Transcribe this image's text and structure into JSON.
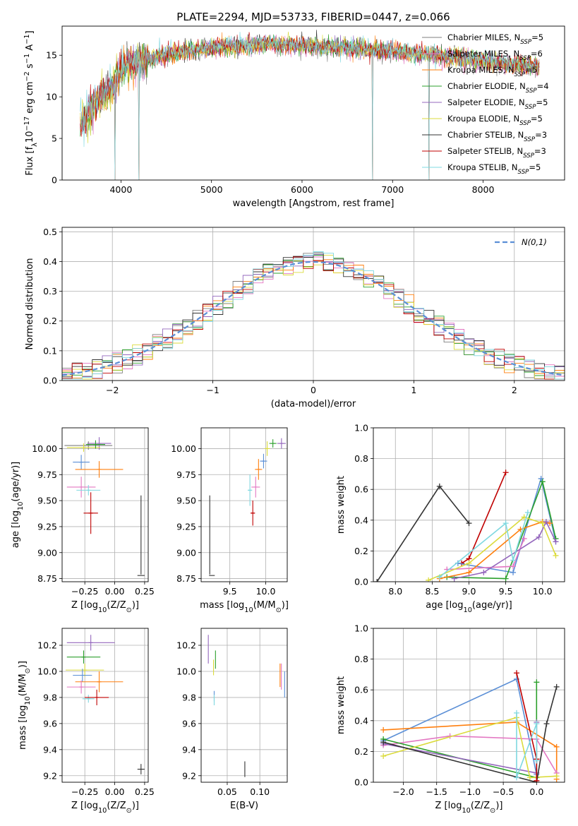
{
  "figure_title": "PLATE=2294, MJD=53733, FIBERID=0447, z=0.066",
  "chart_data": [
    {
      "id": "spectrum",
      "type": "line",
      "xlabel": "wavelength [Angstrom, rest frame]",
      "ylabel": "Flux [f_λ10^-17 erg cm^-2 s^-1 A^-1]",
      "xlim": [
        3350,
        8900
      ],
      "ylim": [
        0,
        18.5
      ],
      "xticks": [
        4000,
        5000,
        6000,
        7000,
        8000
      ],
      "yticks": [
        0,
        5,
        10,
        15
      ],
      "grid": false,
      "legend_position": "right",
      "legend": [
        {
          "label": "Chabrier MILES, N_SSP=5",
          "color": "#7f7f7f"
        },
        {
          "label": "Salpeter MILES, N_SSP=6",
          "color": "#e377c2"
        },
        {
          "label": "Kroupa MILES, N_SSP=5",
          "color": "#ff7f0e"
        },
        {
          "label": "Chabrier ELODIE, N_SSP=4",
          "color": "#2ca02c"
        },
        {
          "label": "Salpeter ELODIE, N_SSP=5",
          "color": "#9467bd"
        },
        {
          "label": "Kroupa ELODIE, N_SSP=5",
          "color": "#dbdb3d"
        },
        {
          "label": "Chabrier STELIB, N_SSP=3",
          "color": "#333333"
        },
        {
          "label": "Salpeter STELIB, N_SSP=3",
          "color": "#c00000"
        },
        {
          "label": "Kroupa STELIB, N_SSP=5",
          "color": "#7fd8e0"
        }
      ],
      "continuum": {
        "x": [
          3550,
          3700,
          3850,
          3950,
          4000,
          4100,
          4200,
          4400,
          4600,
          4800,
          5000,
          5200,
          5400,
          5600,
          5800,
          6000,
          6200,
          6400,
          6600,
          6800,
          7000,
          7200,
          7400,
          7600,
          7800,
          8000,
          8200,
          8400,
          8600
        ],
        "y": [
          6.5,
          9.0,
          10.5,
          12.0,
          13.5,
          13.8,
          14.2,
          14.8,
          15.3,
          15.6,
          15.9,
          16.1,
          16.2,
          16.3,
          16.3,
          16.2,
          16.0,
          15.9,
          15.8,
          15.6,
          15.4,
          15.2,
          15.0,
          14.9,
          14.6,
          14.3,
          14.0,
          13.8,
          13.6
        ]
      },
      "dips": [
        [
          3934,
          0
        ],
        [
          4200,
          0
        ],
        [
          6780,
          0
        ],
        [
          7400,
          0
        ]
      ]
    },
    {
      "id": "residuals",
      "type": "histogram",
      "xlabel": "(data-model)/error",
      "ylabel": "Normed distribution",
      "xlim": [
        -2.5,
        2.5
      ],
      "ylim": [
        0,
        0.515
      ],
      "xticks": [
        -2,
        -1,
        0,
        1,
        2
      ],
      "yticks": [
        0.0,
        0.1,
        0.2,
        0.3,
        0.4,
        0.5
      ],
      "grid": true,
      "legend_position": "top-right",
      "legend": [
        {
          "label": "N(0,1)",
          "color": "#5b8fd6",
          "style": "dashed"
        }
      ],
      "bin_width": 0.1,
      "gauss": {
        "mu": 0,
        "sigma": 1
      }
    },
    {
      "id": "age_vs_Z",
      "type": "errorbar",
      "xlabel": "Z [log10(Z/Z_sun)]",
      "ylabel": "age [log10(age/yr)]",
      "xlim": [
        -0.44,
        0.28
      ],
      "ylim": [
        8.72,
        10.2
      ],
      "xticks": [
        -0.25,
        0.0,
        0.25
      ],
      "yticks": [
        8.75,
        9.0,
        9.25,
        9.5,
        9.75,
        10.0
      ],
      "grid": true,
      "points": [
        {
          "x": -0.22,
          "y": 10.03,
          "xerr": 0.2,
          "yerr": 0.04,
          "color": "#7f7f7f"
        },
        {
          "x": -0.13,
          "y": 10.05,
          "xerr": 0.1,
          "yerr": 0.06,
          "color": "#9467bd"
        },
        {
          "x": -0.26,
          "y": 10.01,
          "xerr": 0.14,
          "yerr": 0.04,
          "color": "#dbdb3d"
        },
        {
          "x": -0.16,
          "y": 10.04,
          "xerr": 0.08,
          "yerr": 0.04,
          "color": "#2ca02c"
        },
        {
          "x": -0.28,
          "y": 9.87,
          "xerr": 0.07,
          "yerr": 0.07,
          "color": "#5b8fd6"
        },
        {
          "x": -0.13,
          "y": 9.8,
          "xerr": 0.2,
          "yerr": 0.08,
          "color": "#ff7f0e"
        },
        {
          "x": -0.28,
          "y": 9.63,
          "xerr": 0.12,
          "yerr": 0.1,
          "color": "#e377c2"
        },
        {
          "x": -0.22,
          "y": 9.6,
          "xerr": 0.1,
          "yerr": 0.05,
          "color": "#7fd8e0"
        },
        {
          "x": -0.2,
          "y": 9.38,
          "xerr": 0.06,
          "yerr": 0.2,
          "color": "#c00000"
        },
        {
          "x": 0.22,
          "y": 8.78,
          "xerr": 0.03,
          "yerr": 0.0,
          "color": "#333333"
        },
        {
          "x": 0.22,
          "y": 9.17,
          "xerr": 0.0,
          "yerr": 0.38,
          "color": "#333333"
        }
      ]
    },
    {
      "id": "age_vs_mass",
      "type": "errorbar",
      "xlabel": "mass [log10(M/M_sun)]",
      "ylabel": "",
      "xlim": [
        9.1,
        10.3
      ],
      "ylim": [
        8.72,
        10.2
      ],
      "xticks": [
        9.5,
        10.0
      ],
      "yticks": [
        8.75,
        9.0,
        9.25,
        9.5,
        9.75,
        10.0
      ],
      "grid": true,
      "points": [
        {
          "x": 10.22,
          "y": 10.05,
          "xerr": 0.06,
          "yerr": 0.05,
          "color": "#9467bd"
        },
        {
          "x": 10.1,
          "y": 10.05,
          "xerr": 0.05,
          "yerr": 0.04,
          "color": "#2ca02c"
        },
        {
          "x": 10.02,
          "y": 10.0,
          "xerr": 0.04,
          "yerr": 0.07,
          "color": "#dbdb3d"
        },
        {
          "x": 9.97,
          "y": 9.88,
          "xerr": 0.05,
          "yerr": 0.07,
          "color": "#5b8fd6"
        },
        {
          "x": 9.9,
          "y": 9.8,
          "xerr": 0.05,
          "yerr": 0.1,
          "color": "#ff7f0e"
        },
        {
          "x": 9.86,
          "y": 9.63,
          "xerr": 0.06,
          "yerr": 0.1,
          "color": "#e377c2"
        },
        {
          "x": 9.78,
          "y": 9.6,
          "xerr": 0.03,
          "yerr": 0.15,
          "color": "#7fd8e0"
        },
        {
          "x": 9.82,
          "y": 9.38,
          "xerr": 0.03,
          "yerr": 0.12,
          "color": "#c00000"
        },
        {
          "x": 9.25,
          "y": 8.78,
          "xerr": 0.04,
          "yerr": 0.0,
          "color": "#333333"
        },
        {
          "x": 9.22,
          "y": 9.17,
          "xerr": 0.0,
          "yerr": 0.38,
          "color": "#333333"
        }
      ]
    },
    {
      "id": "weight_vs_age",
      "type": "line",
      "xlabel": "age [log10(age/yr)]",
      "ylabel": "mass weight",
      "xlim": [
        7.7,
        10.3
      ],
      "ylim": [
        0,
        1.0
      ],
      "xticks": [
        8.0,
        8.5,
        9.0,
        9.5,
        10.0
      ],
      "yticks": [
        0.0,
        0.2,
        0.4,
        0.6,
        0.8,
        1.0
      ],
      "grid": true,
      "series": [
        {
          "color": "#333333",
          "x": [
            7.75,
            8.6,
            9.0
          ],
          "y": [
            0.0,
            0.62,
            0.38
          ]
        },
        {
          "color": "#c00000",
          "x": [
            8.9,
            9.0,
            9.5
          ],
          "y": [
            0.12,
            0.15,
            0.71
          ]
        },
        {
          "color": "#5b8fd6",
          "x": [
            8.85,
            9.6,
            9.98,
            10.18
          ],
          "y": [
            0.12,
            0.06,
            0.67,
            0.26
          ]
        },
        {
          "color": "#2ca02c",
          "x": [
            8.7,
            9.5,
            10.0,
            10.18
          ],
          "y": [
            0.03,
            0.02,
            0.65,
            0.28
          ]
        },
        {
          "color": "#e377c2",
          "x": [
            8.7,
            9.6,
            9.75
          ],
          "y": [
            0.08,
            0.1,
            0.28
          ]
        },
        {
          "color": "#ff7f0e",
          "x": [
            8.6,
            9.0,
            9.7,
            10.0,
            10.1
          ],
          "y": [
            0.02,
            0.06,
            0.34,
            0.39,
            0.38
          ]
        },
        {
          "color": "#9467bd",
          "x": [
            8.8,
            9.2,
            9.95,
            10.05,
            10.18
          ],
          "y": [
            0.02,
            0.06,
            0.29,
            0.39,
            0.26
          ]
        },
        {
          "color": "#dbdb3d",
          "x": [
            8.45,
            9.0,
            9.75,
            10.0,
            10.18
          ],
          "y": [
            0.01,
            0.12,
            0.42,
            0.38,
            0.17
          ]
        },
        {
          "color": "#7fd8e0",
          "x": [
            8.6,
            9.5,
            9.6,
            9.8
          ],
          "y": [
            0.03,
            0.38,
            0.14,
            0.45
          ]
        }
      ]
    },
    {
      "id": "mass_vs_Z",
      "type": "errorbar",
      "xlabel": "Z [log10(Z/Z_sun)]",
      "ylabel": "mass [log10(M/M_sun)]",
      "xlim": [
        -0.44,
        0.28
      ],
      "ylim": [
        9.15,
        10.33
      ],
      "xticks": [
        -0.25,
        0.0,
        0.25
      ],
      "yticks": [
        9.2,
        9.4,
        9.6,
        9.8,
        10.0,
        10.2
      ],
      "grid": true,
      "points": [
        {
          "x": -0.2,
          "y": 10.22,
          "xerr": 0.2,
          "yerr": 0.06,
          "color": "#9467bd"
        },
        {
          "x": -0.26,
          "y": 10.11,
          "xerr": 0.14,
          "yerr": 0.05,
          "color": "#2ca02c"
        },
        {
          "x": -0.25,
          "y": 10.01,
          "xerr": 0.16,
          "yerr": 0.05,
          "color": "#dbdb3d"
        },
        {
          "x": -0.27,
          "y": 9.97,
          "xerr": 0.08,
          "yerr": 0.05,
          "color": "#5b8fd6"
        },
        {
          "x": -0.13,
          "y": 9.92,
          "xerr": 0.2,
          "yerr": 0.08,
          "color": "#ff7f0e"
        },
        {
          "x": -0.28,
          "y": 9.88,
          "xerr": 0.12,
          "yerr": 0.05,
          "color": "#e377c2"
        },
        {
          "x": -0.22,
          "y": 9.79,
          "xerr": 0.05,
          "yerr": 0.03,
          "color": "#7fd8e0"
        },
        {
          "x": -0.15,
          "y": 9.8,
          "xerr": 0.1,
          "yerr": 0.06,
          "color": "#c00000"
        },
        {
          "x": 0.22,
          "y": 9.25,
          "xerr": 0.03,
          "yerr": 0.04,
          "color": "#333333"
        }
      ]
    },
    {
      "id": "mass_vs_EBV",
      "type": "errorbar",
      "xlabel": "E(B-V)",
      "ylabel": "",
      "xlim": [
        0.01,
        0.142
      ],
      "ylim": [
        9.15,
        10.33
      ],
      "xticks": [
        0.05,
        0.1
      ],
      "yticks": [
        9.2,
        9.4,
        9.6,
        9.8,
        10.0,
        10.2
      ],
      "grid": true,
      "points": [
        {
          "x": 0.021,
          "y": 10.17,
          "xerr": 0.0,
          "yerr": 0.11,
          "color": "#9467bd"
        },
        {
          "x": 0.032,
          "y": 10.09,
          "xerr": 0.0,
          "yerr": 0.07,
          "color": "#2ca02c"
        },
        {
          "x": 0.029,
          "y": 10.03,
          "xerr": 0.0,
          "yerr": 0.06,
          "color": "#dbdb3d"
        },
        {
          "x": 0.03,
          "y": 9.81,
          "xerr": 0.0,
          "yerr": 0.04,
          "color": "#5b8fd6"
        },
        {
          "x": 0.03,
          "y": 9.78,
          "xerr": 0.0,
          "yerr": 0.04,
          "color": "#7fd8e0"
        },
        {
          "x": 0.077,
          "y": 9.25,
          "xerr": 0.0,
          "yerr": 0.06,
          "color": "#333333"
        },
        {
          "x": 0.131,
          "y": 9.97,
          "xerr": 0.0,
          "yerr": 0.09,
          "color": "#ff7f0e"
        },
        {
          "x": 0.133,
          "y": 9.96,
          "xerr": 0.0,
          "yerr": 0.1,
          "color": "#e377c2"
        },
        {
          "x": 0.138,
          "y": 9.9,
          "xerr": 0.0,
          "yerr": 0.1,
          "color": "#5b8fd6"
        }
      ]
    },
    {
      "id": "weight_vs_Z",
      "type": "line",
      "xlabel": "Z [log10(Z/Z_sun)]",
      "ylabel": "mass weight",
      "xlim": [
        -2.45,
        0.42
      ],
      "ylim": [
        0,
        1.0
      ],
      "xticks": [
        -2.0,
        -1.5,
        -1.0,
        -0.5,
        0.0
      ],
      "yticks": [
        0.0,
        0.2,
        0.4,
        0.6,
        0.8,
        1.0
      ],
      "grid": true,
      "series": [
        {
          "color": "#5b8fd6",
          "x": [
            -2.3,
            -0.3,
            0.0
          ],
          "y": [
            0.27,
            0.67,
            0.05
          ]
        },
        {
          "color": "#ff7f0e",
          "x": [
            -2.3,
            -0.3,
            0.3,
            0.3
          ],
          "y": [
            0.34,
            0.39,
            0.23,
            0.02
          ]
        },
        {
          "color": "#e377c2",
          "x": [
            -2.3,
            -1.3,
            0.0,
            0.3
          ],
          "y": [
            0.24,
            0.3,
            0.28,
            0.06
          ]
        },
        {
          "color": "#2ca02c",
          "x": [
            -2.3,
            0.0,
            0.0
          ],
          "y": [
            0.28,
            0.03,
            0.65
          ]
        },
        {
          "color": "#9467bd",
          "x": [
            -2.3,
            0.0,
            0.0
          ],
          "y": [
            0.25,
            0.06,
            0.39
          ]
        },
        {
          "color": "#dbdb3d",
          "x": [
            -2.3,
            -0.3,
            -0.1,
            0.3
          ],
          "y": [
            0.17,
            0.42,
            0.03,
            0.04
          ]
        },
        {
          "color": "#333333",
          "x": [
            -2.3,
            0.0,
            0.15,
            0.3
          ],
          "y": [
            0.26,
            0.0,
            0.38,
            0.62
          ]
        },
        {
          "color": "#c00000",
          "x": [
            -0.3,
            0.0,
            0.0
          ],
          "y": [
            0.71,
            0.15,
            0.01
          ]
        },
        {
          "color": "#7fd8e0",
          "x": [
            -0.3,
            -0.3,
            0.0,
            0.0
          ],
          "y": [
            0.45,
            0.03,
            0.38,
            0.14
          ]
        }
      ]
    }
  ]
}
